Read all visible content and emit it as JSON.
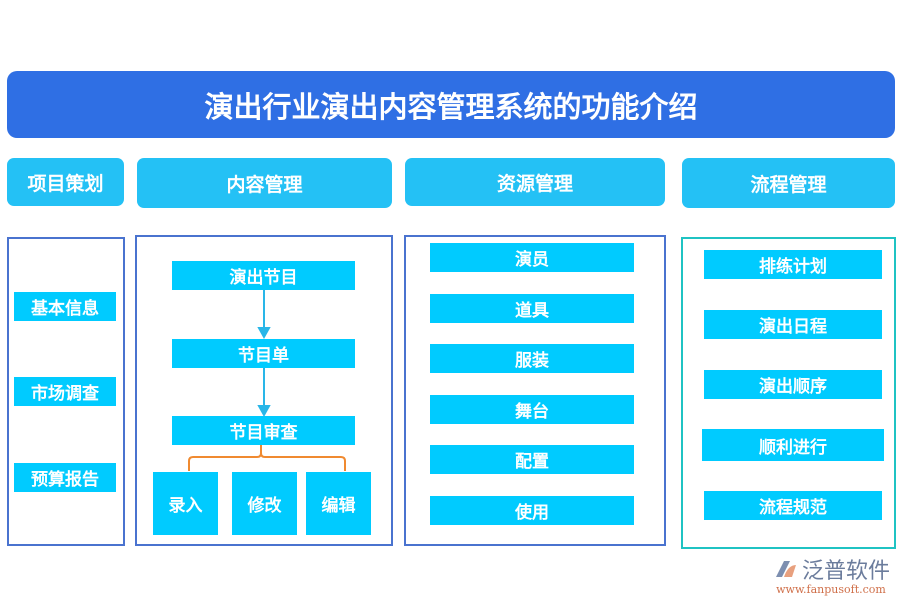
{
  "title": "演出行业演出内容管理系统的功能介绍",
  "columns": [
    {
      "header": "项目策划",
      "items": [
        "基本信息",
        "市场调查",
        "预算报告"
      ]
    },
    {
      "header": "内容管理",
      "flow": [
        "演出节目",
        "节目单",
        "节目审查"
      ],
      "sub": [
        "录入",
        "修改",
        "编辑"
      ]
    },
    {
      "header": "资源管理",
      "items": [
        "演员",
        "道具",
        "服装",
        "舞台",
        "配置",
        "使用"
      ]
    },
    {
      "header": "流程管理",
      "items": [
        "排练计划",
        "演出日程",
        "演出顺序",
        "顺利进行",
        "流程规范"
      ]
    }
  ],
  "logo": {
    "name": "泛普软件",
    "url": "www.fanpusoft.com"
  },
  "colors": {
    "title": "#2f6fe4",
    "header": "#24c1f5",
    "box": "#00cbff",
    "bracket": "#f08a30",
    "panel_border": "#4a73cf",
    "panel4_border": "#1fc3c3"
  }
}
